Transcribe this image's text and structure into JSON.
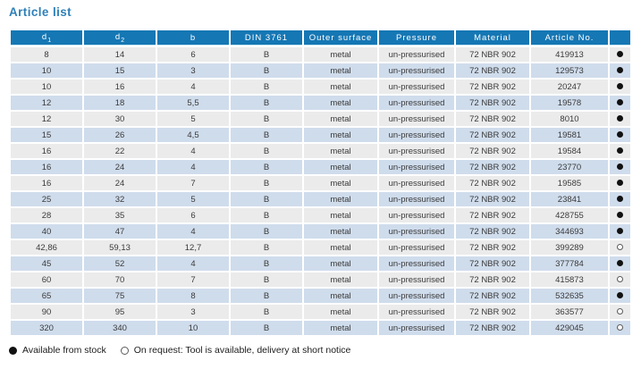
{
  "page": {
    "title": "Article list"
  },
  "table": {
    "columns": [
      {
        "label": "d",
        "sub": "1"
      },
      {
        "label": "d",
        "sub": "2"
      },
      {
        "label": "b"
      },
      {
        "label": "DIN 3761"
      },
      {
        "label": "Outer surface"
      },
      {
        "label": "Pressure"
      },
      {
        "label": "Material"
      },
      {
        "label": "Article No."
      },
      {
        "label": ""
      }
    ],
    "rows": [
      {
        "d1": "8",
        "d2": "14",
        "b": "6",
        "din": "B",
        "outer": "metal",
        "pressure": "un-pressurised",
        "material": "72 NBR 902",
        "article": "419913",
        "stock": "filled"
      },
      {
        "d1": "10",
        "d2": "15",
        "b": "3",
        "din": "B",
        "outer": "metal",
        "pressure": "un-pressurised",
        "material": "72 NBR 902",
        "article": "129573",
        "stock": "filled"
      },
      {
        "d1": "10",
        "d2": "16",
        "b": "4",
        "din": "B",
        "outer": "metal",
        "pressure": "un-pressurised",
        "material": "72 NBR 902",
        "article": "20247",
        "stock": "filled"
      },
      {
        "d1": "12",
        "d2": "18",
        "b": "5,5",
        "din": "B",
        "outer": "metal",
        "pressure": "un-pressurised",
        "material": "72 NBR 902",
        "article": "19578",
        "stock": "filled"
      },
      {
        "d1": "12",
        "d2": "30",
        "b": "5",
        "din": "B",
        "outer": "metal",
        "pressure": "un-pressurised",
        "material": "72 NBR 902",
        "article": "8010",
        "stock": "filled"
      },
      {
        "d1": "15",
        "d2": "26",
        "b": "4,5",
        "din": "B",
        "outer": "metal",
        "pressure": "un-pressurised",
        "material": "72 NBR 902",
        "article": "19581",
        "stock": "filled"
      },
      {
        "d1": "16",
        "d2": "22",
        "b": "4",
        "din": "B",
        "outer": "metal",
        "pressure": "un-pressurised",
        "material": "72 NBR 902",
        "article": "19584",
        "stock": "filled"
      },
      {
        "d1": "16",
        "d2": "24",
        "b": "4",
        "din": "B",
        "outer": "metal",
        "pressure": "un-pressurised",
        "material": "72 NBR 902",
        "article": "23770",
        "stock": "filled"
      },
      {
        "d1": "16",
        "d2": "24",
        "b": "7",
        "din": "B",
        "outer": "metal",
        "pressure": "un-pressurised",
        "material": "72 NBR 902",
        "article": "19585",
        "stock": "filled"
      },
      {
        "d1": "25",
        "d2": "32",
        "b": "5",
        "din": "B",
        "outer": "metal",
        "pressure": "un-pressurised",
        "material": "72 NBR 902",
        "article": "23841",
        "stock": "filled"
      },
      {
        "d1": "28",
        "d2": "35",
        "b": "6",
        "din": "B",
        "outer": "metal",
        "pressure": "un-pressurised",
        "material": "72 NBR 902",
        "article": "428755",
        "stock": "filled"
      },
      {
        "d1": "40",
        "d2": "47",
        "b": "4",
        "din": "B",
        "outer": "metal",
        "pressure": "un-pressurised",
        "material": "72 NBR 902",
        "article": "344693",
        "stock": "filled"
      },
      {
        "d1": "42,86",
        "d2": "59,13",
        "b": "12,7",
        "din": "B",
        "outer": "metal",
        "pressure": "un-pressurised",
        "material": "72 NBR 902",
        "article": "399289",
        "stock": "open"
      },
      {
        "d1": "45",
        "d2": "52",
        "b": "4",
        "din": "B",
        "outer": "metal",
        "pressure": "un-pressurised",
        "material": "72 NBR 902",
        "article": "377784",
        "stock": "filled"
      },
      {
        "d1": "60",
        "d2": "70",
        "b": "7",
        "din": "B",
        "outer": "metal",
        "pressure": "un-pressurised",
        "material": "72 NBR 902",
        "article": "415873",
        "stock": "open"
      },
      {
        "d1": "65",
        "d2": "75",
        "b": "8",
        "din": "B",
        "outer": "metal",
        "pressure": "un-pressurised",
        "material": "72 NBR 902",
        "article": "532635",
        "stock": "filled"
      },
      {
        "d1": "90",
        "d2": "95",
        "b": "3",
        "din": "B",
        "outer": "metal",
        "pressure": "un-pressurised",
        "material": "72 NBR 902",
        "article": "363577",
        "stock": "open"
      },
      {
        "d1": "320",
        "d2": "340",
        "b": "10",
        "din": "B",
        "outer": "metal",
        "pressure": "un-pressurised",
        "material": "72 NBR 902",
        "article": "429045",
        "stock": "open"
      }
    ]
  },
  "legend": {
    "stock_label": "Available from stock",
    "request_label": "On request: Tool is available, delivery at short notice"
  },
  "colors": {
    "header_bg": "#1577b4",
    "title_text": "#2e80b9",
    "row_gray": "#ebebeb",
    "row_blue": "#cfdcec"
  }
}
